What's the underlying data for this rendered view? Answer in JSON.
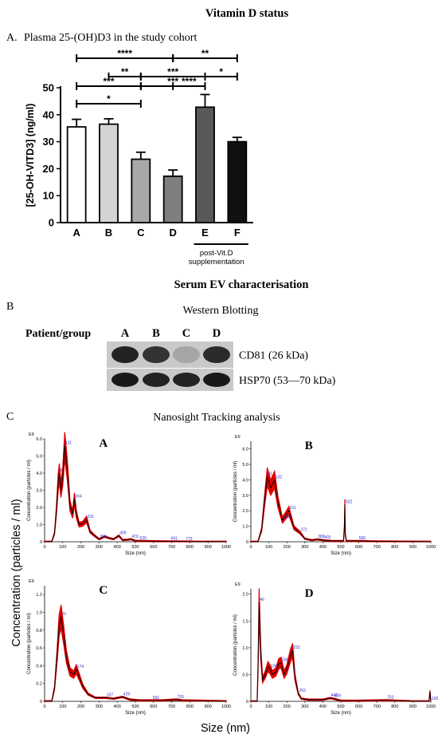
{
  "headings": {
    "vitd": "Vitamin D status",
    "ev": "Serum EV characterisation"
  },
  "panelA": {
    "label": "A.",
    "title": "Plasma 25-(OH)D3 in the study cohort",
    "post_label_1": "post-Vit.D",
    "post_label_2": "supplementation",
    "significance": [
      {
        "from": "A",
        "to": "C",
        "stars": "*"
      },
      {
        "from": "A",
        "to": "C",
        "stars": "***"
      },
      {
        "from": "C",
        "to": "E",
        "stars": "***"
      },
      {
        "from": "E",
        "to": "F",
        "stars": "*"
      },
      {
        "from": "B",
        "to": "C",
        "stars": "**"
      },
      {
        "from": "C",
        "to": "E",
        "stars": "***"
      },
      {
        "from": "D",
        "to": "E",
        "stars": "****"
      },
      {
        "from": "A",
        "to": "D",
        "stars": "****"
      },
      {
        "from": "D",
        "to": "F",
        "stars": "**"
      }
    ]
  },
  "panelB": {
    "label": "B",
    "title": "Western Blotting",
    "row_header": "Patient/group",
    "lanes": [
      "A",
      "B",
      "C",
      "D"
    ],
    "bands": [
      {
        "name": "CD81 (26 kDa)",
        "intensity": [
          0.9,
          0.8,
          0.15,
          0.85
        ]
      },
      {
        "name": "HSP70 (53—70 kDa)",
        "intensity": [
          0.95,
          0.9,
          0.9,
          0.95
        ]
      }
    ]
  },
  "panelC": {
    "label": "C",
    "title": "Nanosight Tracking analysis",
    "ylabel": "Concentration (particles / ml)",
    "xlabel": "Size (nm)",
    "plot_ylabel": "Concentration (particles / ml)",
    "plot_xlabel": "Size (nm)",
    "exponent": "E9",
    "x_ticks": [
      "0",
      "100",
      "200",
      "300",
      "400",
      "500",
      "600",
      "700",
      "800",
      "900",
      "1000"
    ]
  },
  "chart_data": [
    {
      "type": "bar",
      "title": "",
      "xlabel": "",
      "ylabel": "[25-OH-VITD3] (ng/ml)",
      "categories": [
        "A",
        "B",
        "C",
        "D",
        "E",
        "F"
      ],
      "values": [
        35.5,
        36.5,
        23.5,
        17.2,
        42.8,
        30
      ],
      "errors": [
        2.8,
        2,
        2.6,
        2.3,
        4.7,
        1.6
      ],
      "colors": [
        "#ffffff",
        "#d4d4d4",
        "#a8a8a8",
        "#7f7f7f",
        "#595959",
        "#101010"
      ],
      "ylim": [
        0,
        50
      ],
      "yticks": [
        0,
        10,
        20,
        30,
        40,
        50
      ]
    },
    {
      "type": "line",
      "title": "A",
      "xlim": [
        0,
        1000
      ],
      "ylim": [
        0,
        6
      ],
      "yticks": [
        "0",
        "1.0",
        "2.0",
        "3.0",
        "4.0",
        "5.0",
        "6.0"
      ],
      "peaks": [
        {
          "x": 81,
          "label": "81"
        },
        {
          "x": 111,
          "label": "111"
        },
        {
          "x": 164,
          "label": "164"
        },
        {
          "x": 231,
          "label": "231"
        },
        {
          "x": 300,
          "label": "300"
        },
        {
          "x": 409,
          "label": "409"
        },
        {
          "x": 476,
          "label": "476"
        },
        {
          "x": 520,
          "label": "520"
        },
        {
          "x": 691,
          "label": "691"
        },
        {
          "x": 773,
          "label": "773"
        }
      ],
      "x": [
        0,
        40,
        55,
        65,
        75,
        81,
        90,
        100,
        111,
        125,
        140,
        155,
        164,
        175,
        190,
        210,
        231,
        250,
        270,
        300,
        330,
        360,
        380,
        409,
        430,
        460,
        476,
        500,
        520,
        600,
        691,
        773,
        850,
        1000
      ],
      "y": [
        0,
        0,
        0.5,
        1.8,
        3.5,
        4.0,
        3.0,
        3.8,
        5.6,
        4.2,
        2.1,
        1.6,
        2.5,
        1.6,
        1.0,
        1.05,
        1.3,
        0.6,
        0.4,
        0.15,
        0.3,
        0.2,
        0.15,
        0.35,
        0.1,
        0.12,
        0.15,
        0.05,
        0.05,
        0.03,
        0.02,
        0.01,
        0,
        0
      ]
    },
    {
      "type": "line",
      "title": "B",
      "xlim": [
        0,
        1000
      ],
      "ylim": [
        0,
        6.5
      ],
      "yticks": [
        "0",
        "1.0",
        "2.0",
        "3.0",
        "4.0",
        "5.0",
        "6.0"
      ],
      "peaks": [
        {
          "x": 91,
          "label": "91"
        },
        {
          "x": 132,
          "label": "132"
        },
        {
          "x": 175,
          "label": "175"
        },
        {
          "x": 211,
          "label": "211"
        },
        {
          "x": 272,
          "label": "272"
        },
        {
          "x": 368,
          "label": "368"
        },
        {
          "x": 403,
          "label": "403"
        },
        {
          "x": 522,
          "label": "522"
        },
        {
          "x": 596,
          "label": "596"
        }
      ],
      "x": [
        0,
        40,
        60,
        75,
        91,
        110,
        132,
        150,
        175,
        200,
        211,
        240,
        272,
        300,
        340,
        368,
        403,
        450,
        515,
        520,
        522,
        525,
        530,
        596,
        700,
        1000
      ],
      "y": [
        0,
        0,
        0.8,
        2.5,
        4.2,
        3.5,
        4.0,
        2.6,
        1.4,
        1.8,
        2.0,
        0.9,
        0.6,
        0.2,
        0.1,
        0.15,
        0.1,
        0.05,
        0.05,
        1.0,
        2.4,
        0.5,
        0.05,
        0.05,
        0.02,
        0
      ]
    },
    {
      "type": "line",
      "title": "C",
      "xlim": [
        0,
        1000
      ],
      "ylim": [
        0,
        1.3
      ],
      "yticks": [
        "0",
        "0.2",
        "0.4",
        "0.6",
        "0.8",
        "1.0",
        "1.2"
      ],
      "peaks": [
        {
          "x": 91,
          "label": "91"
        },
        {
          "x": 174,
          "label": "174"
        },
        {
          "x": 337,
          "label": "337"
        },
        {
          "x": 429,
          "label": "429"
        },
        {
          "x": 591,
          "label": "591"
        },
        {
          "x": 726,
          "label": "726"
        }
      ],
      "x": [
        0,
        40,
        55,
        70,
        80,
        91,
        105,
        120,
        140,
        160,
        174,
        190,
        210,
        240,
        280,
        337,
        380,
        429,
        470,
        520,
        591,
        650,
        726,
        760,
        1000
      ],
      "y": [
        0,
        0,
        0.15,
        0.55,
        0.85,
        0.95,
        0.75,
        0.5,
        0.33,
        0.3,
        0.36,
        0.28,
        0.17,
        0.08,
        0.04,
        0.04,
        0.03,
        0.05,
        0.02,
        0.01,
        0.01,
        0.01,
        0.02,
        0.01,
        0
      ]
    },
    {
      "type": "line",
      "title": "D",
      "xlim": [
        0,
        1000
      ],
      "ylim": [
        0,
        2.1
      ],
      "yticks": [
        "0",
        "0.5",
        "1.0",
        "1.5",
        "2.0"
      ],
      "peaks": [
        {
          "x": 46,
          "label": "46"
        },
        {
          "x": 106,
          "label": "106"
        },
        {
          "x": 168,
          "label": "168"
        },
        {
          "x": 232,
          "label": "232"
        },
        {
          "x": 263,
          "label": "263"
        },
        {
          "x": 441,
          "label": "441"
        },
        {
          "x": 459,
          "label": "459"
        },
        {
          "x": 753,
          "label": "753"
        },
        {
          "x": 1000,
          "label": "1000"
        }
      ],
      "x": [
        0,
        35,
        40,
        46,
        55,
        65,
        80,
        95,
        106,
        120,
        140,
        155,
        168,
        185,
        200,
        220,
        232,
        245,
        263,
        280,
        320,
        400,
        441,
        459,
        500,
        600,
        753,
        900,
        990,
        995,
        1000
      ],
      "y": [
        0,
        0,
        0.6,
        1.85,
        0.9,
        0.4,
        0.5,
        0.65,
        0.6,
        0.5,
        0.55,
        0.7,
        0.72,
        0.5,
        0.6,
        0.85,
        0.95,
        0.45,
        0.15,
        0.05,
        0.03,
        0.03,
        0.06,
        0.05,
        0.01,
        0.01,
        0.02,
        0,
        0,
        0.18,
        0
      ]
    }
  ]
}
